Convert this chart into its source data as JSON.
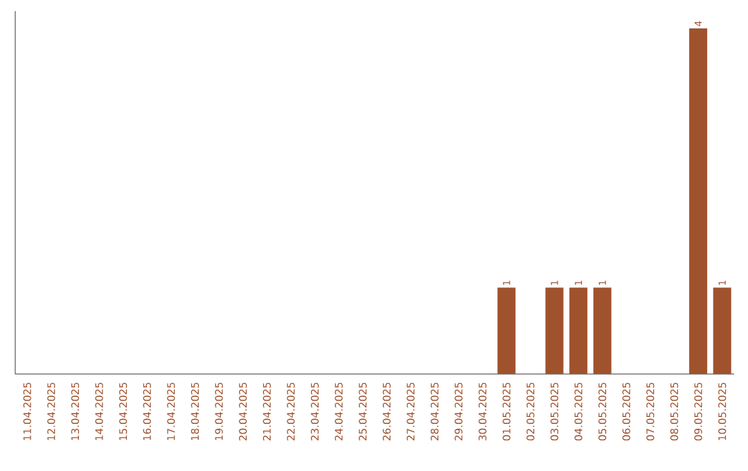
{
  "chart_data": {
    "type": "bar",
    "categories": [
      "11.04.2025",
      "12.04.2025",
      "13.04.2025",
      "14.04.2025",
      "15.04.2025",
      "16.04.2025",
      "17.04.2025",
      "18.04.2025",
      "19.04.2025",
      "20.04.2025",
      "21.04.2025",
      "22.04.2025",
      "23.04.2025",
      "24.04.2025",
      "25.04.2025",
      "26.04.2025",
      "27.04.2025",
      "28.04.2025",
      "29.04.2025",
      "30.04.2025",
      "01.05.2025",
      "02.05.2025",
      "03.05.2025",
      "04.05.2025",
      "05.05.2025",
      "06.05.2025",
      "07.05.2025",
      "08.05.2025",
      "09.05.2025",
      "10.05.2025"
    ],
    "values": [
      null,
      null,
      null,
      null,
      null,
      null,
      null,
      null,
      null,
      null,
      null,
      null,
      null,
      null,
      null,
      null,
      null,
      null,
      null,
      null,
      1,
      null,
      1,
      1,
      1,
      null,
      null,
      null,
      4,
      1
    ],
    "value_labels": [
      null,
      null,
      null,
      null,
      null,
      null,
      null,
      null,
      null,
      null,
      null,
      null,
      null,
      null,
      null,
      null,
      null,
      null,
      null,
      null,
      "1",
      null,
      "1",
      "1",
      "1",
      null,
      null,
      null,
      "4",
      "1"
    ],
    "color": "#a0522d"
  }
}
